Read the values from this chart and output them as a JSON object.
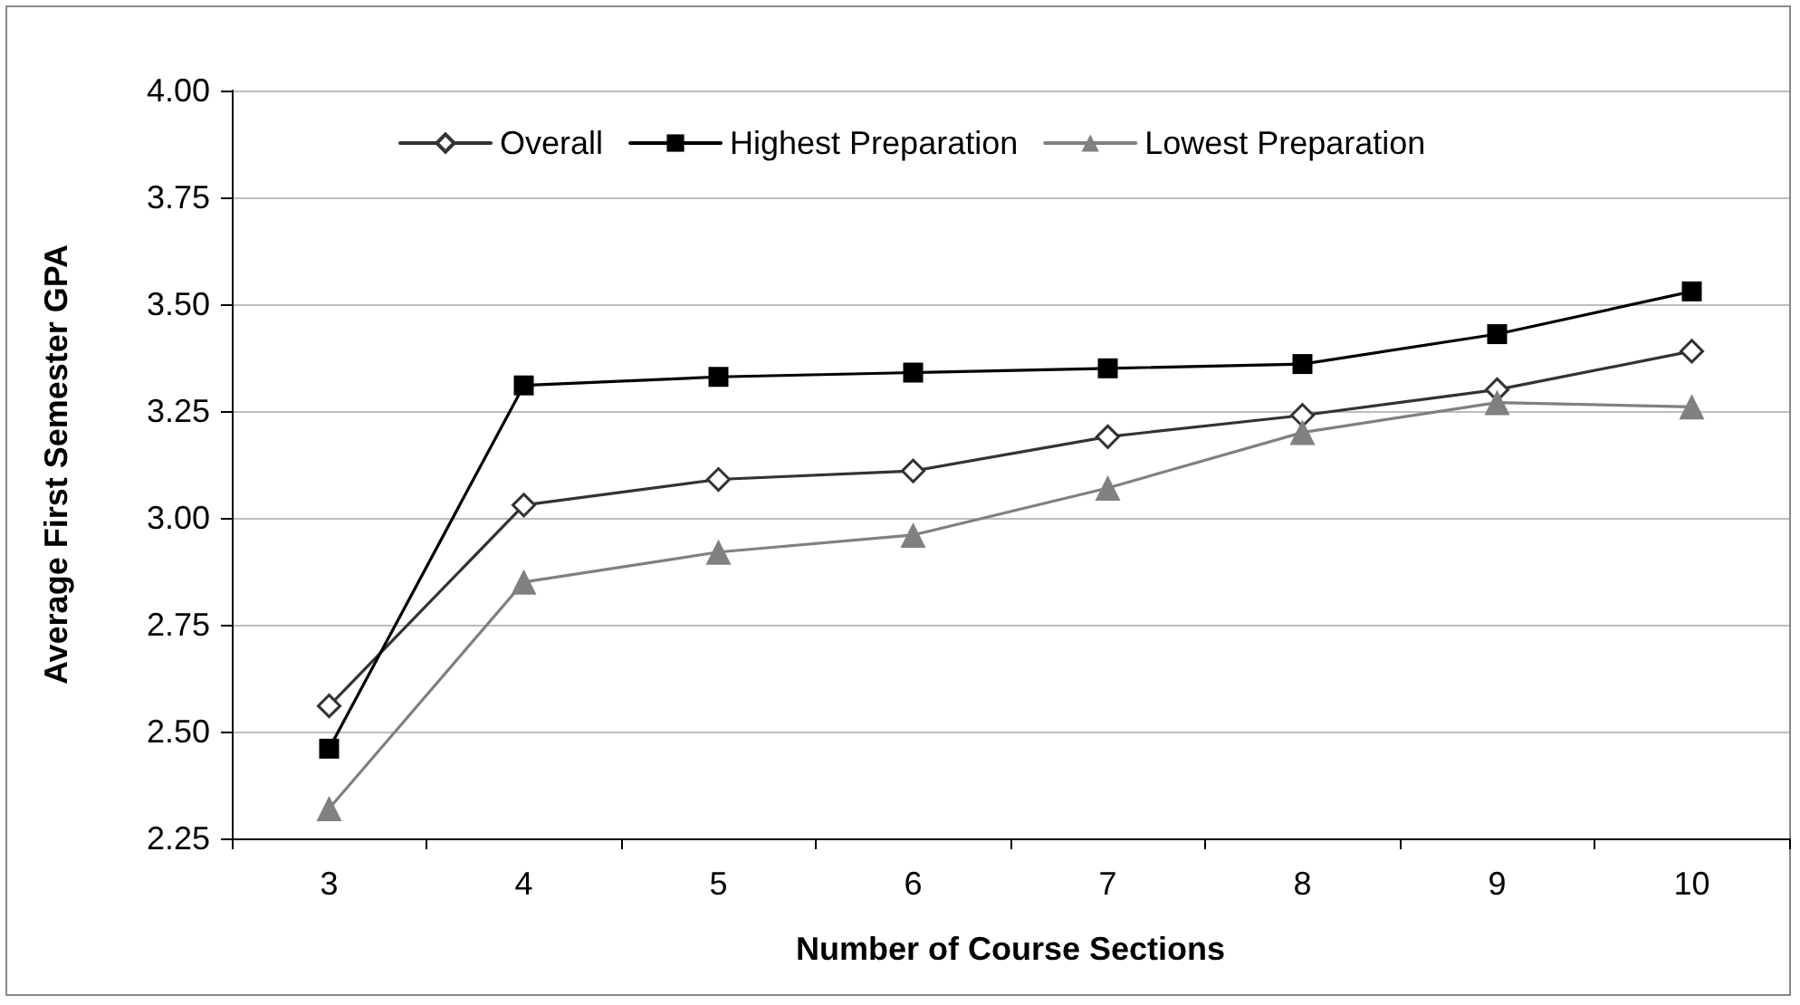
{
  "chart_data": {
    "type": "line",
    "xlabel": "Number of Course Sections",
    "ylabel": "Average First Semester GPA",
    "categories": [
      "3",
      "4",
      "5",
      "6",
      "7",
      "8",
      "9",
      "10"
    ],
    "series": [
      {
        "name": "Overall",
        "color": "#333333",
        "marker": "diamond",
        "values": [
          2.56,
          3.03,
          3.09,
          3.11,
          3.19,
          3.24,
          3.3,
          3.39
        ]
      },
      {
        "name": "Highest Preparation",
        "color": "#000000",
        "marker": "square",
        "values": [
          2.46,
          3.31,
          3.33,
          3.34,
          3.35,
          3.36,
          3.43,
          3.53
        ]
      },
      {
        "name": "Lowest Preparation",
        "color": "#808080",
        "marker": "triangle",
        "values": [
          2.32,
          2.85,
          2.92,
          2.96,
          3.07,
          3.2,
          3.27,
          3.26
        ]
      }
    ],
    "ylim": [
      2.25,
      4.0
    ],
    "yticks": [
      {
        "value": 2.25,
        "label": "2.25"
      },
      {
        "value": 2.5,
        "label": "2.50"
      },
      {
        "value": 2.75,
        "label": "2.75"
      },
      {
        "value": 3,
        "label": "3.00"
      },
      {
        "value": 3.25,
        "label": "3.25"
      },
      {
        "value": 3.5,
        "label": "3.50"
      },
      {
        "value": 3.75,
        "label": "3.75"
      },
      {
        "value": 4,
        "label": "4.00"
      }
    ],
    "grid": "y",
    "legend": "top"
  }
}
